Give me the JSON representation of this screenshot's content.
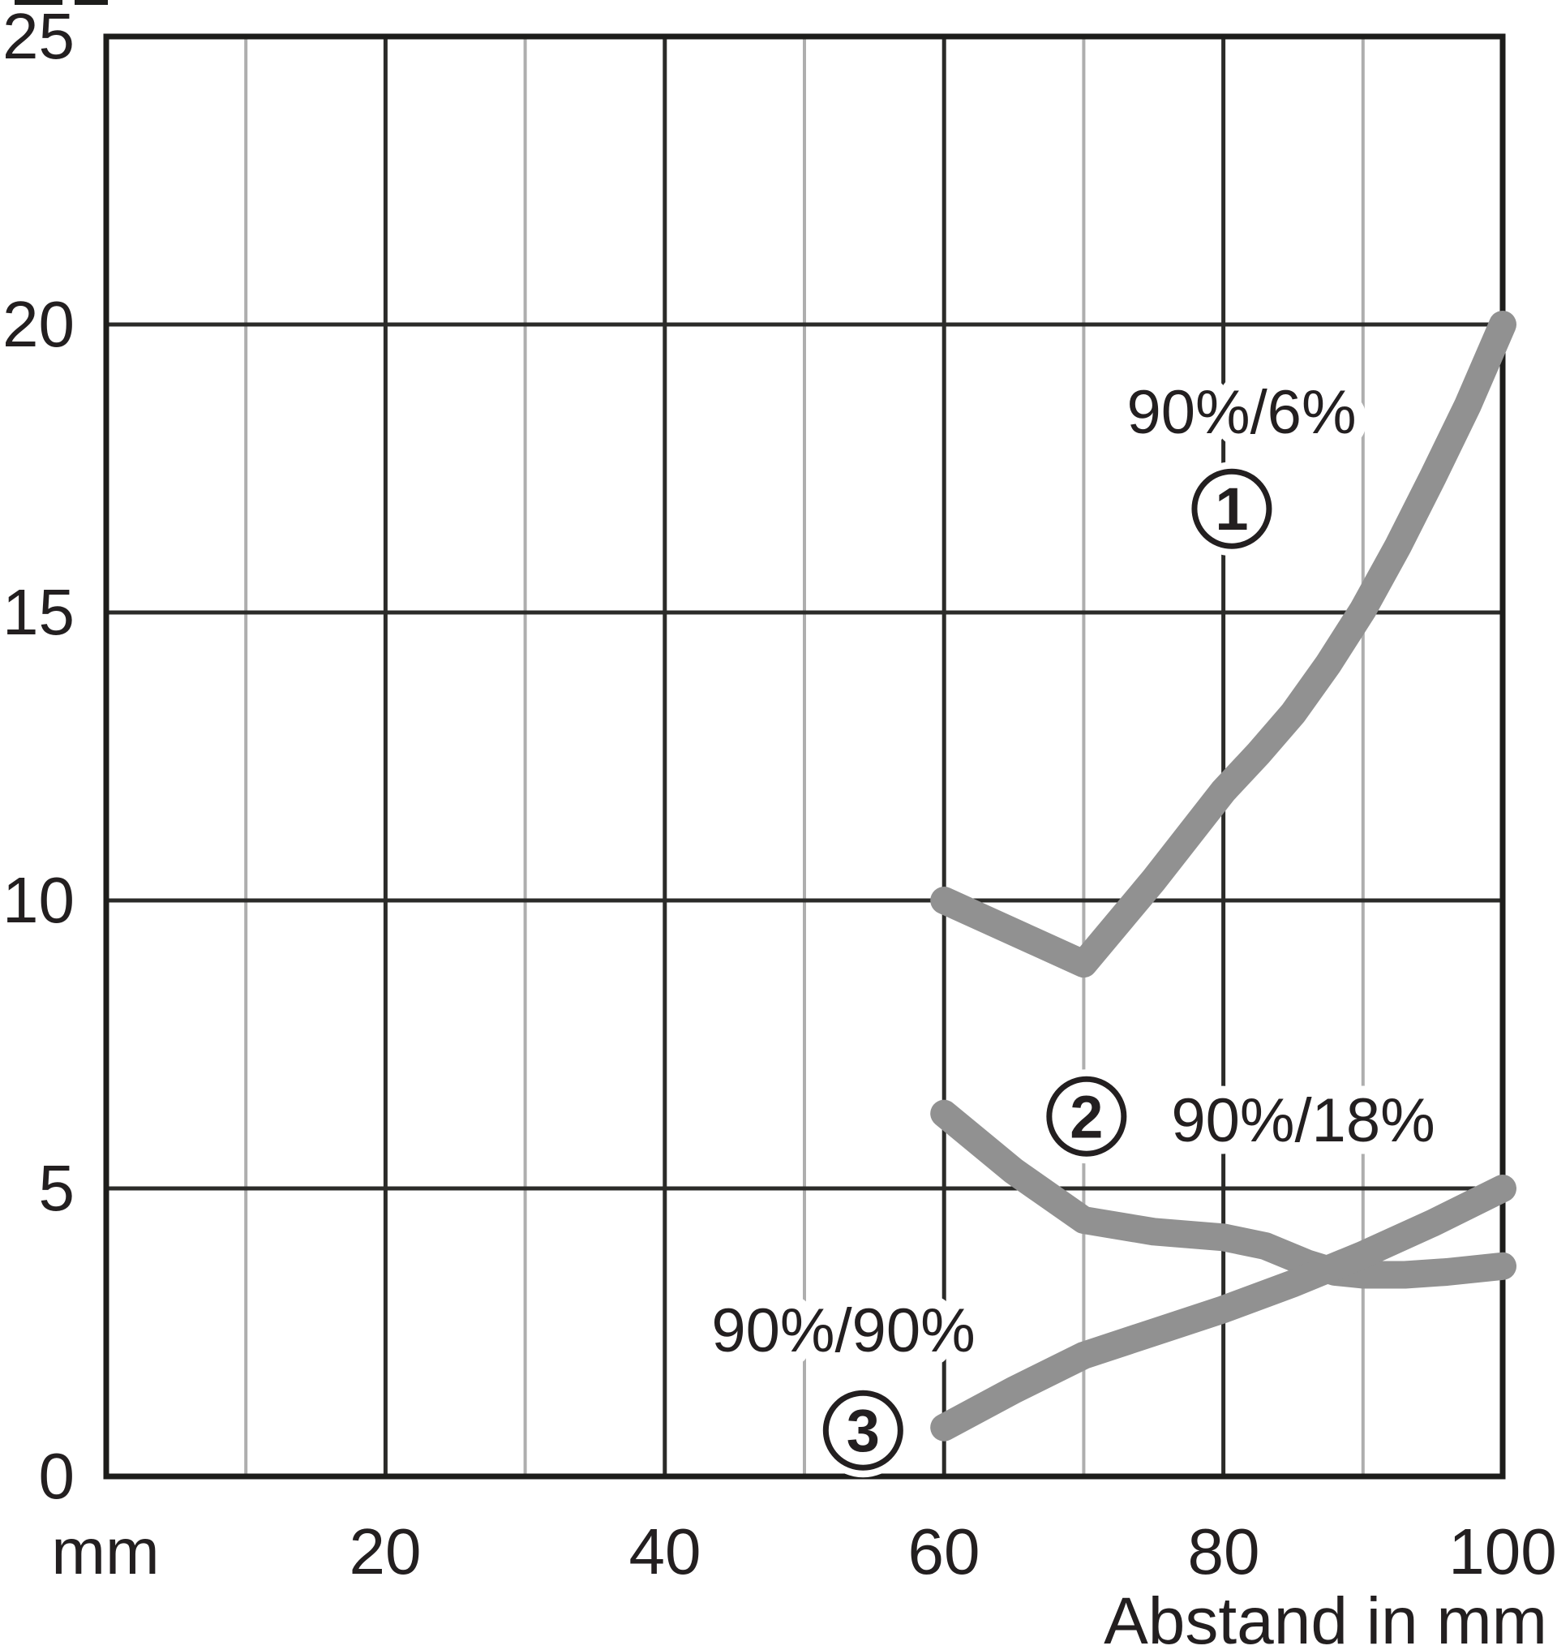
{
  "chart_data": {
    "type": "line",
    "title": "",
    "xlabel": "Abstand in mm",
    "x_axis_unit_label": "mm",
    "ylabel": "",
    "xlim": [
      0,
      100
    ],
    "ylim": [
      0,
      25
    ],
    "x_ticks": [
      20,
      40,
      60,
      80,
      100
    ],
    "y_ticks": [
      0,
      5,
      10,
      15,
      20,
      25
    ],
    "x_minor_gridlines": [
      10,
      30,
      50,
      70,
      90
    ],
    "x_major_gridlines": [
      20,
      40,
      60,
      80,
      100
    ],
    "y_gridlines": [
      5,
      10,
      15,
      20
    ],
    "grid": true,
    "legend_position": "inline-annotations",
    "series": [
      {
        "index": "1",
        "name": "90%/6%",
        "points": [
          [
            60,
            10
          ],
          [
            70,
            8.9
          ],
          [
            75,
            10.35
          ],
          [
            80,
            11.9
          ],
          [
            82.5,
            12.55
          ],
          [
            85,
            13.25
          ],
          [
            87.5,
            14.1
          ],
          [
            90,
            15.05
          ],
          [
            92.5,
            16.15
          ],
          [
            95,
            17.35
          ],
          [
            97.5,
            18.6
          ],
          [
            100,
            20
          ]
        ],
        "label_pos": [
          81.3,
          18.5
        ],
        "marker_pos": [
          80.6,
          16.8
        ]
      },
      {
        "index": "2",
        "name": "90%/18%",
        "points": [
          [
            60,
            6.3
          ],
          [
            65,
            5.3
          ],
          [
            70,
            4.45
          ],
          [
            75,
            4.25
          ],
          [
            80,
            4.15
          ],
          [
            83,
            4.0
          ],
          [
            86,
            3.7
          ],
          [
            88,
            3.55
          ],
          [
            90,
            3.5
          ],
          [
            93,
            3.5
          ],
          [
            96,
            3.55
          ],
          [
            100,
            3.65
          ]
        ],
        "label_pos": [
          85.7,
          6.2
        ],
        "marker_pos": [
          70.2,
          6.25
        ]
      },
      {
        "index": "3",
        "name": "90%/90%",
        "points": [
          [
            60,
            0.85
          ],
          [
            65,
            1.5
          ],
          [
            70,
            2.1
          ],
          [
            75,
            2.5
          ],
          [
            80,
            2.9
          ],
          [
            85,
            3.35
          ],
          [
            90,
            3.85
          ],
          [
            95,
            4.4
          ],
          [
            100,
            5.0
          ]
        ],
        "label_pos": [
          52.8,
          2.55
        ],
        "marker_pos": [
          54.2,
          0.8
        ]
      }
    ]
  },
  "colors": {
    "background": "#ffffff",
    "curve": "#919191",
    "grid_minor": "#aeaeae",
    "grid_major": "#2b2b29",
    "axis_frame": "#1d1d1b",
    "text": "#231f20",
    "label_halo": "#ffffff"
  }
}
